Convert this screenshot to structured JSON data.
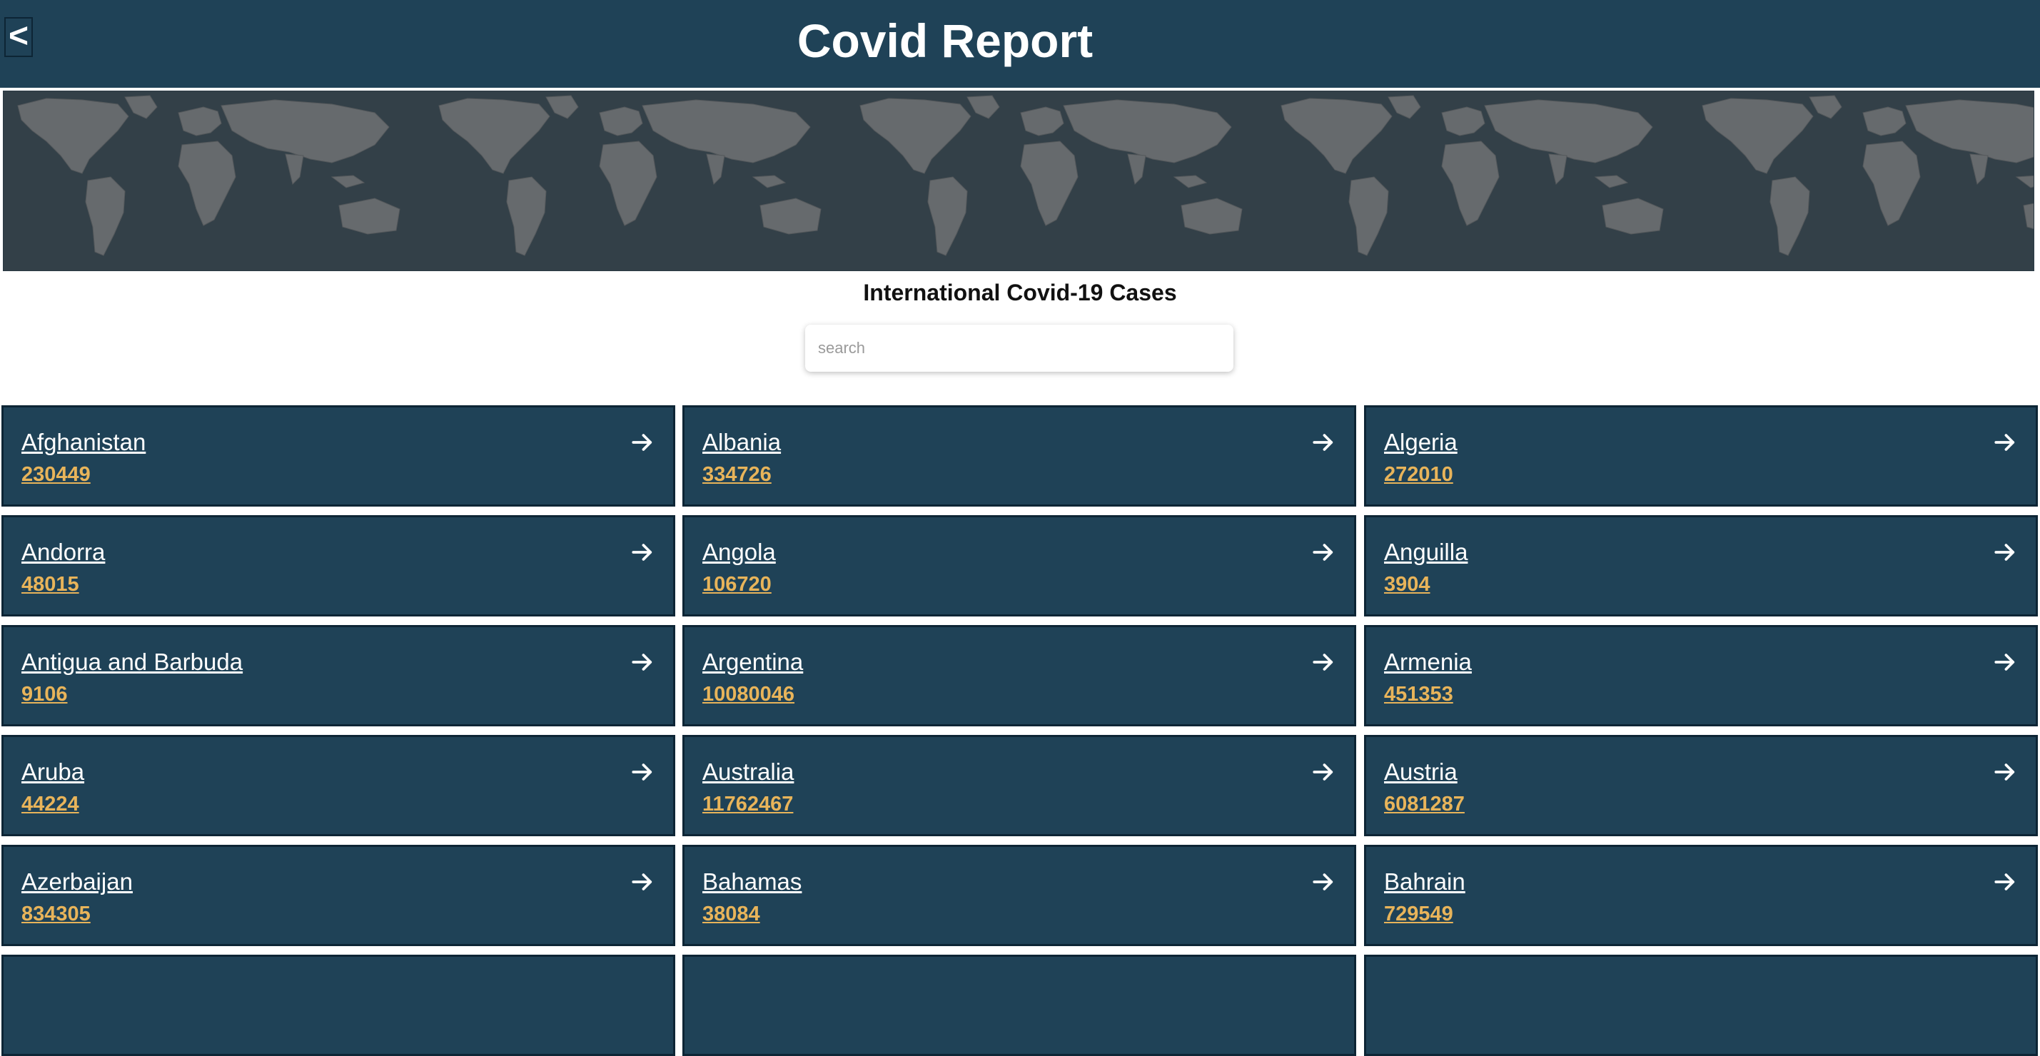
{
  "header": {
    "back_label": "<",
    "title": "Covid Report"
  },
  "main": {
    "subtitle": "International Covid-19 Cases",
    "search": {
      "placeholder": "search",
      "value": ""
    }
  },
  "colors": {
    "header_bg": "#1f4257",
    "card_bg": "#1f4257",
    "count_text": "#e8b45a"
  },
  "countries": [
    {
      "name": "Afghanistan",
      "cases": "230449"
    },
    {
      "name": "Albania",
      "cases": "334726"
    },
    {
      "name": "Algeria",
      "cases": "272010"
    },
    {
      "name": "Andorra",
      "cases": "48015"
    },
    {
      "name": "Angola",
      "cases": "106720"
    },
    {
      "name": "Anguilla",
      "cases": "3904"
    },
    {
      "name": "Antigua and Barbuda",
      "cases": "9106"
    },
    {
      "name": "Argentina",
      "cases": "10080046"
    },
    {
      "name": "Armenia",
      "cases": "451353"
    },
    {
      "name": "Aruba",
      "cases": "44224"
    },
    {
      "name": "Australia",
      "cases": "11762467"
    },
    {
      "name": "Austria",
      "cases": "6081287"
    },
    {
      "name": "Azerbaijan",
      "cases": "834305"
    },
    {
      "name": "Bahamas",
      "cases": "38084"
    },
    {
      "name": "Bahrain",
      "cases": "729549"
    },
    {
      "name": "",
      "cases": ""
    },
    {
      "name": "",
      "cases": ""
    },
    {
      "name": "",
      "cases": ""
    }
  ]
}
